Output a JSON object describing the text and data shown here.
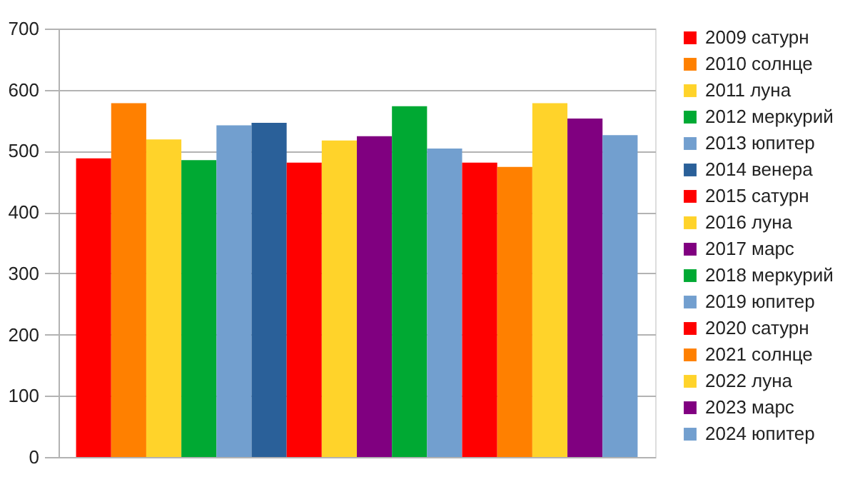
{
  "chart_data": {
    "type": "bar",
    "categories": [
      null
    ],
    "ylim": [
      0,
      700
    ],
    "yticks": [
      0,
      100,
      200,
      300,
      400,
      500,
      600,
      700
    ],
    "grid": "y",
    "legend": "right",
    "series": [
      {
        "name": "2009 сатурн",
        "color": "#ff0000",
        "values": [
          488
        ]
      },
      {
        "name": "2010 солнце",
        "color": "#ff8000",
        "values": [
          578
        ]
      },
      {
        "name": "2011 луна",
        "color": "#ffd32a",
        "values": [
          519
        ]
      },
      {
        "name": "2012 меркурий",
        "color": "#00a933",
        "values": [
          485
        ]
      },
      {
        "name": "2013 юпитер",
        "color": "#729fcf",
        "values": [
          542
        ]
      },
      {
        "name": "2014 венера",
        "color": "#2a6099",
        "values": [
          546
        ]
      },
      {
        "name": "2015 сатурн",
        "color": "#ff0000",
        "values": [
          481
        ]
      },
      {
        "name": "2016 луна",
        "color": "#ffd32a",
        "values": [
          517
        ]
      },
      {
        "name": "2017 марс",
        "color": "#800080",
        "values": [
          524
        ]
      },
      {
        "name": "2018 меркурий",
        "color": "#00a933",
        "values": [
          573
        ]
      },
      {
        "name": "2019 юпитер",
        "color": "#729fcf",
        "values": [
          504
        ]
      },
      {
        "name": "2020 сатурн",
        "color": "#ff0000",
        "values": [
          481
        ]
      },
      {
        "name": "2021 солнце",
        "color": "#ff8000",
        "values": [
          474
        ]
      },
      {
        "name": "2022 луна",
        "color": "#ffd32a",
        "values": [
          578
        ]
      },
      {
        "name": "2023 марс",
        "color": "#800080",
        "values": [
          553
        ]
      },
      {
        "name": "2024 юпитер",
        "color": "#729fcf",
        "values": [
          526
        ]
      }
    ]
  }
}
